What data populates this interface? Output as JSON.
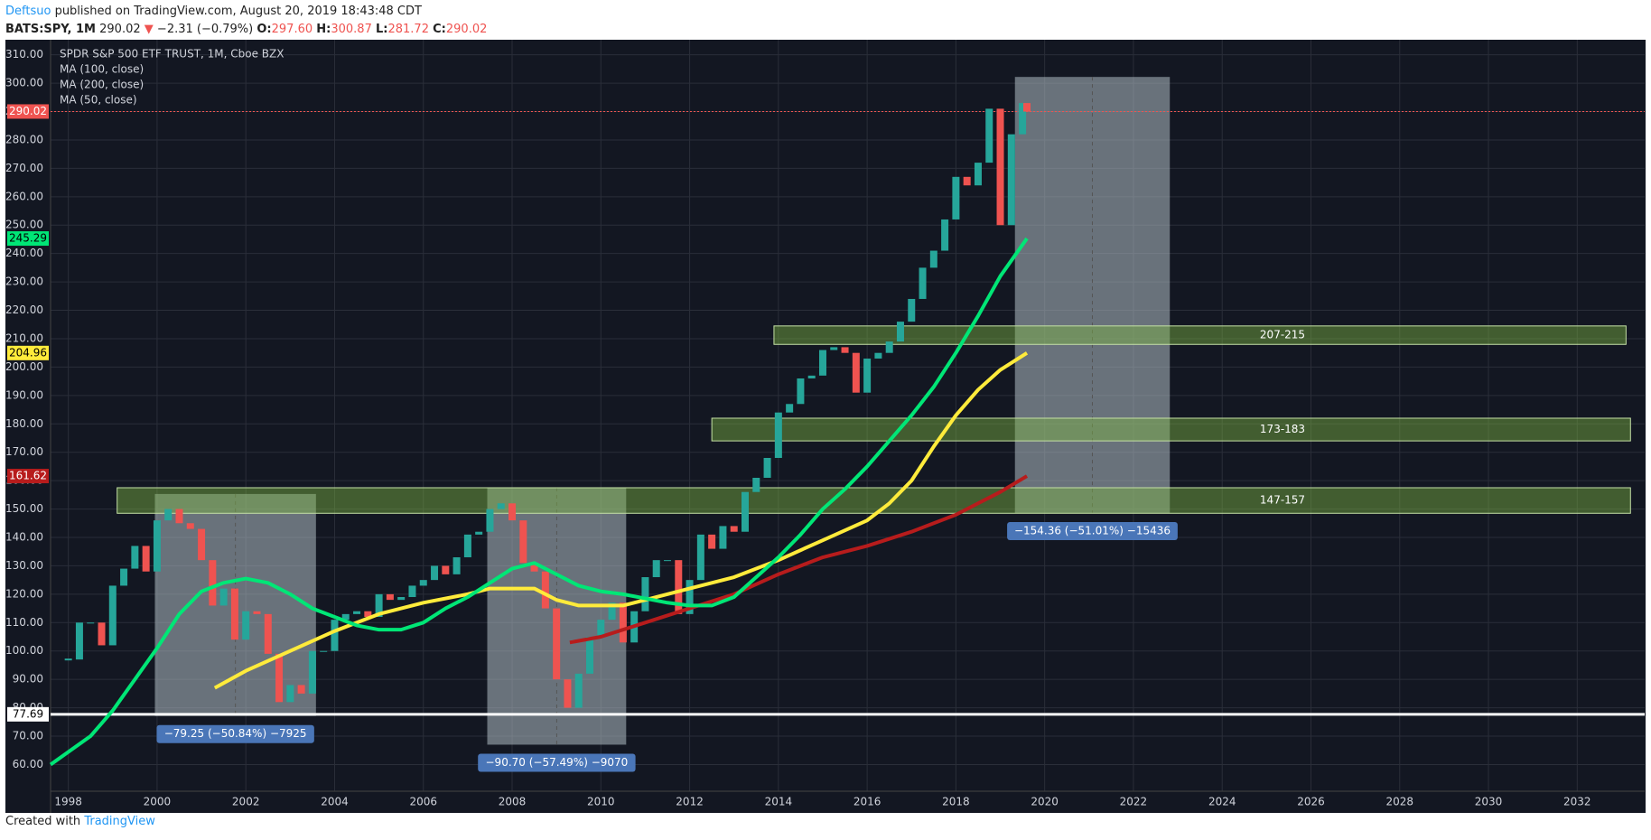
{
  "header": {
    "author": "Deftsuo",
    "published": "published on TradingView.com, August 20, 2019 18:43:48 CDT",
    "symbol": "BATS:SPY, 1M",
    "last": "290.02",
    "arrow": "▼",
    "change": "−2.31 (−0.79%)",
    "o_label": "O:",
    "o": "297.60",
    "h_label": "H:",
    "h": "300.87",
    "l_label": "L:",
    "l": "281.72",
    "c_label": "C:",
    "c": "290.02"
  },
  "footer": {
    "created": "Created with",
    "brand": "TradingView"
  },
  "chart_data": {
    "type": "candlestick",
    "title": "SPDR S&P 500 ETF TRUST, 1M, Cboe BZX",
    "background": "#131722",
    "grid": true,
    "xlim": [
      1997.6,
      2033.52
    ],
    "xticks": [
      1998,
      2000,
      2002,
      2004,
      2006,
      2008,
      2010,
      2012,
      2014,
      2016,
      2018,
      2020,
      2022,
      2024,
      2026,
      2028,
      2030,
      2032
    ],
    "ylim": [
      50.6,
      315.3
    ],
    "yticks": [
      {
        "value": 60,
        "label": "60.00"
      },
      {
        "value": 70,
        "label": "70.00"
      },
      {
        "value": 80,
        "label": "80.00"
      },
      {
        "value": 90,
        "label": "90.00"
      },
      {
        "value": 100,
        "label": "100.00"
      },
      {
        "value": 110,
        "label": "110.00"
      },
      {
        "value": 120,
        "label": "120.00"
      },
      {
        "value": 130,
        "label": "130.00"
      },
      {
        "value": 140,
        "label": "140.00"
      },
      {
        "value": 150,
        "label": "150.00"
      },
      {
        "value": 160,
        "label": "160.00"
      },
      {
        "value": 170,
        "label": "170.00"
      },
      {
        "value": 180,
        "label": "180.00"
      },
      {
        "value": 190,
        "label": "190.00"
      },
      {
        "value": 200,
        "label": "200.00"
      },
      {
        "value": 210,
        "label": "210.00"
      },
      {
        "value": 220,
        "label": "220.00"
      },
      {
        "value": 230,
        "label": "230.00"
      },
      {
        "value": 240,
        "label": "240.00"
      },
      {
        "value": 250,
        "label": "250.00"
      },
      {
        "value": 260,
        "label": "260.00"
      },
      {
        "value": 270,
        "label": "270.00"
      },
      {
        "value": 280,
        "label": "280.00"
      },
      {
        "value": 290,
        "label": "290.00"
      },
      {
        "value": 300,
        "label": "300.00"
      },
      {
        "value": 310,
        "label": "310.00"
      }
    ],
    "candles": {
      "up_color": "#26a69a",
      "down_color": "#ef5350",
      "x": [
        1998,
        1998.25,
        1998.5,
        1998.75,
        1999,
        1999.25,
        1999.5,
        1999.75,
        2000,
        2000.25,
        2000.5,
        2000.75,
        2001,
        2001.25,
        2001.5,
        2001.75,
        2002,
        2002.25,
        2002.5,
        2002.75,
        2003,
        2003.25,
        2003.5,
        2003.75,
        2004,
        2004.25,
        2004.5,
        2004.75,
        2005,
        2005.25,
        2005.5,
        2005.75,
        2006,
        2006.25,
        2006.5,
        2006.75,
        2007,
        2007.25,
        2007.5,
        2007.75,
        2008,
        2008.25,
        2008.5,
        2008.75,
        2009,
        2009.25,
        2009.5,
        2009.75,
        2010,
        2010.25,
        2010.5,
        2010.75,
        2011,
        2011.25,
        2011.5,
        2011.75,
        2012,
        2012.25,
        2012.5,
        2012.75,
        2013,
        2013.25,
        2013.5,
        2013.75,
        2014,
        2014.25,
        2014.5,
        2014.75,
        2015,
        2015.25,
        2015.5,
        2015.75,
        2016,
        2016.25,
        2016.5,
        2016.75,
        2017,
        2017.25,
        2017.5,
        2017.75,
        2018,
        2018.25,
        2018.5,
        2018.75,
        2019,
        2019.25,
        2019.5,
        2019.6
      ],
      "close": [
        97,
        110,
        110,
        102,
        123,
        129,
        137,
        128,
        146,
        150,
        145,
        143,
        132,
        116,
        122,
        104,
        114,
        113,
        99,
        82,
        88,
        85,
        100,
        100,
        111,
        113,
        114,
        112,
        120,
        118,
        119,
        123,
        125,
        130,
        127,
        133,
        141,
        142,
        150,
        152,
        146,
        131,
        128,
        115,
        90,
        80,
        92,
        105,
        111,
        117,
        103,
        114,
        126,
        132,
        132,
        113,
        125,
        141,
        136,
        144,
        142,
        156,
        161,
        168,
        184,
        187,
        196,
        197,
        206,
        207,
        205,
        191,
        203,
        205,
        209,
        216,
        224,
        235,
        241,
        252,
        267,
        264,
        272,
        291,
        250,
        282,
        293,
        290
      ]
    },
    "series": [
      {
        "name": "MA (100, close)",
        "color": "#ffeb3b",
        "x": [
          2001.3,
          2002,
          2003,
          2004,
          2005,
          2006,
          2007,
          2007.5,
          2008.5,
          2009,
          2009.5,
          2010,
          2010.5,
          2011,
          2012,
          2013,
          2014,
          2015,
          2016,
          2016.5,
          2017,
          2017.5,
          2018,
          2018.5,
          2019,
          2019.6
        ],
        "values": [
          87,
          93,
          100,
          107,
          113,
          117,
          120,
          122,
          122,
          118,
          116,
          116,
          116,
          118,
          122,
          126,
          132,
          139,
          146,
          152,
          160,
          172,
          183,
          192,
          199,
          204.96
        ]
      },
      {
        "name": "MA (200, close)",
        "color": "#b71c1c",
        "x": [
          2009.3,
          2010,
          2011,
          2012,
          2013,
          2014,
          2015,
          2016,
          2017,
          2018,
          2018.5,
          2019,
          2019.6
        ],
        "values": [
          103,
          105,
          110,
          115,
          120,
          127,
          133,
          137,
          142,
          148,
          152,
          156,
          161.62
        ]
      },
      {
        "name": "MA (50, close)",
        "color": "#00e676",
        "x": [
          1997.6,
          1998.5,
          1999,
          1999.5,
          2000,
          2000.5,
          2001,
          2001.5,
          2002,
          2002.5,
          2003,
          2003.5,
          2004,
          2004.5,
          2005,
          2005.5,
          2006,
          2006.5,
          2007,
          2007.5,
          2008,
          2008.5,
          2009,
          2009.5,
          2010,
          2010.5,
          2011,
          2011.5,
          2012,
          2012.5,
          2013,
          2013.5,
          2014,
          2014.5,
          2015,
          2015.5,
          2016,
          2016.5,
          2017,
          2017.5,
          2018,
          2018.5,
          2019,
          2019.6
        ],
        "values": [
          60,
          70,
          79,
          90,
          101,
          113,
          121,
          124,
          125.5,
          124,
          120,
          115,
          112,
          109,
          107.5,
          107.5,
          110,
          115,
          119,
          124,
          129,
          131,
          127,
          123,
          121,
          120,
          118.5,
          117,
          116,
          116,
          119,
          126,
          133,
          141,
          150,
          157,
          165,
          174,
          183,
          193,
          205,
          218,
          232,
          245.29
        ]
      }
    ],
    "zones": [
      {
        "label": "207-215",
        "x": [
          2013.9,
          2033.1
        ],
        "low": 208,
        "high": 214.5
      },
      {
        "label": "173-183",
        "x": [
          2012.5,
          2033.2
        ],
        "low": 174,
        "high": 182
      },
      {
        "label": "147-157",
        "x": [
          1999.1,
          2033.2
        ],
        "low": 148.5,
        "high": 157.5
      }
    ],
    "measures": [
      {
        "label": "−79.25 (−50.84%) −7925",
        "x": [
          1999.95,
          2003.58
        ],
        "top": 155.3,
        "bottom": 77.1
      },
      {
        "label": "−90.70 (−57.49%) −9070",
        "x": [
          2007.44,
          2010.57
        ],
        "top": 157.5,
        "bottom": 67
      },
      {
        "label": "−154.36 (−51.01%) −15436",
        "x": [
          2019.33,
          2022.82
        ],
        "top": 302.2,
        "bottom": 148.6
      }
    ],
    "price_lines": [
      {
        "value": 290.02,
        "color": "#ef5350",
        "style": "dotted"
      },
      {
        "value": 77.69,
        "color": "#ffffff",
        "style": "solid"
      }
    ]
  }
}
